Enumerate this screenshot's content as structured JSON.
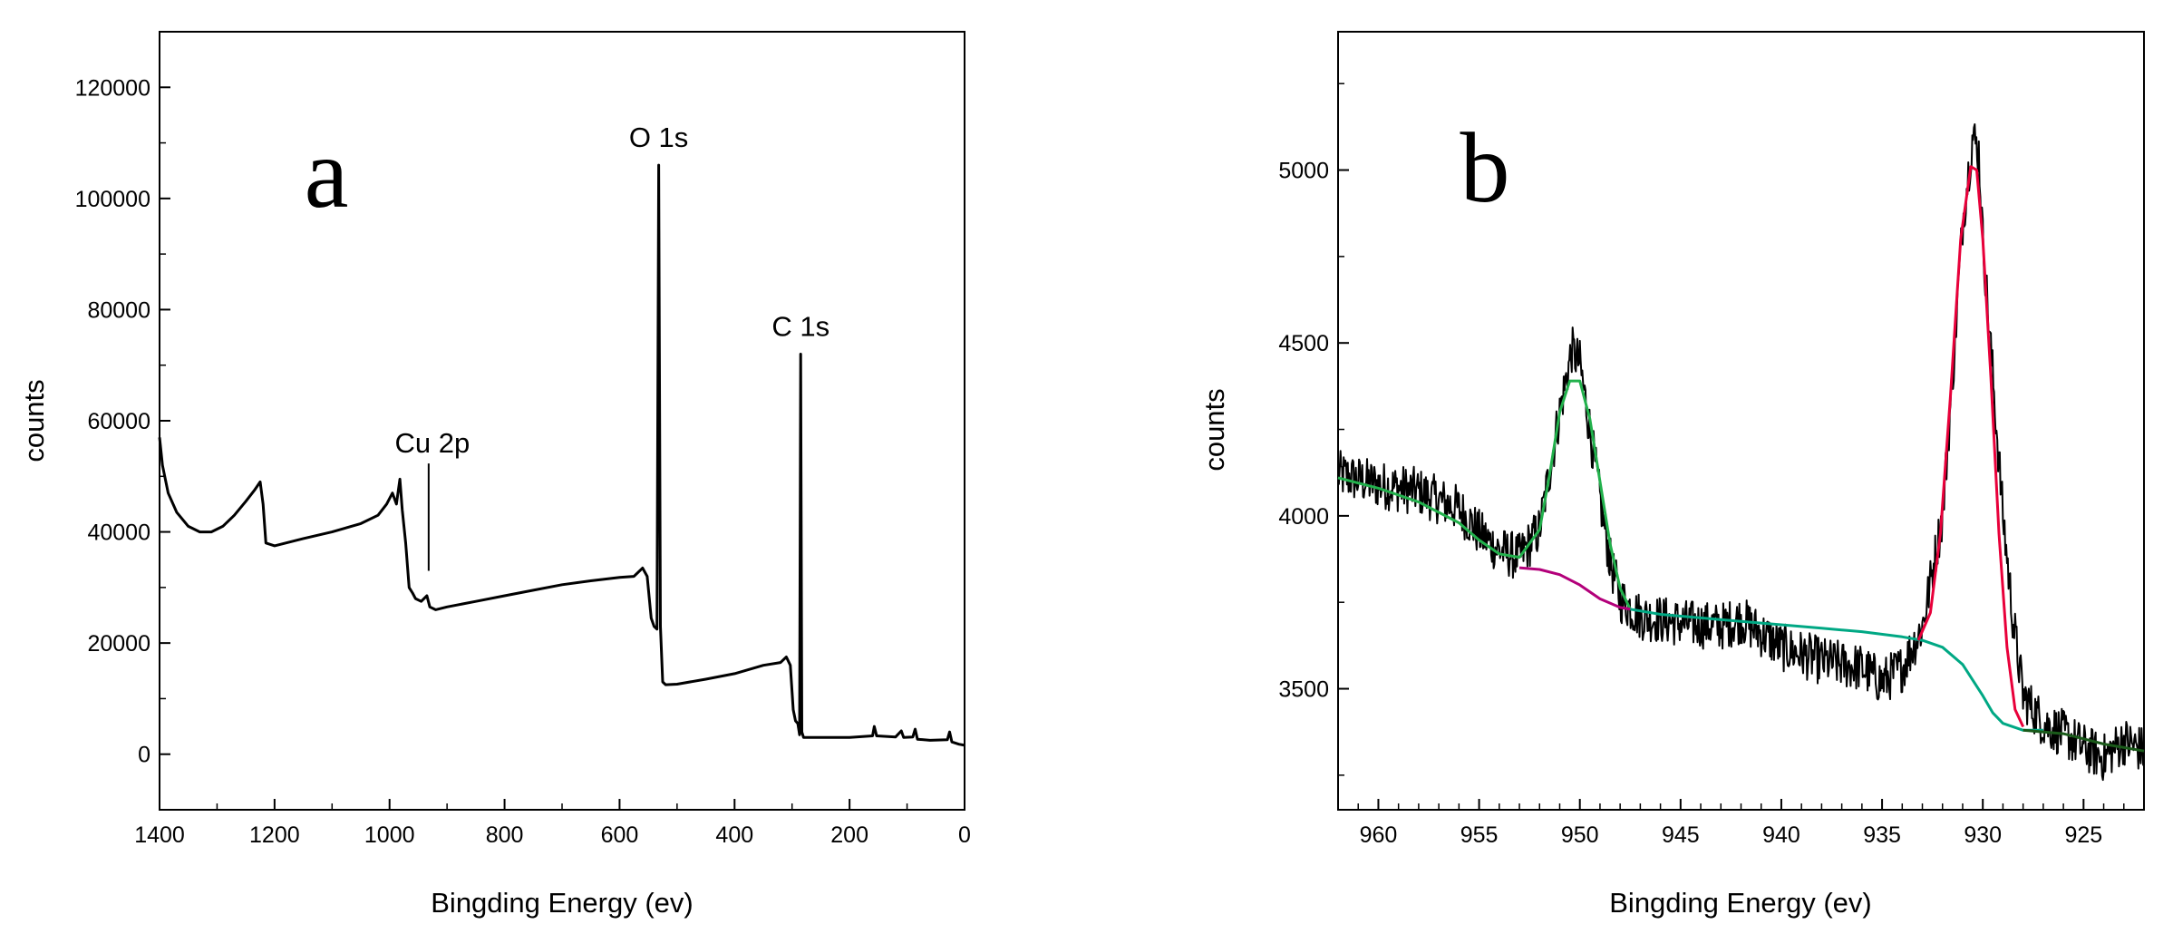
{
  "chart_data": [
    {
      "type": "line",
      "panel_label": "a",
      "xlabel": "Bingding Energy (ev)",
      "ylabel": "counts",
      "xlim": [
        1400,
        0
      ],
      "ylim": [
        -10000,
        130000
      ],
      "x_reversed": true,
      "xticks": [
        1400,
        1200,
        1000,
        800,
        600,
        400,
        200,
        0
      ],
      "yticks": [
        0,
        20000,
        40000,
        60000,
        80000,
        100000,
        120000
      ],
      "grid": false,
      "series": [
        {
          "color": "#000000",
          "points": [
            [
              1400,
              57000
            ],
            [
              1395,
              52000
            ],
            [
              1385,
              47000
            ],
            [
              1370,
              43500
            ],
            [
              1350,
              41000
            ],
            [
              1330,
              40000
            ],
            [
              1310,
              40000
            ],
            [
              1290,
              41000
            ],
            [
              1270,
              43000
            ],
            [
              1250,
              45500
            ],
            [
              1235,
              47500
            ],
            [
              1225,
              49000
            ],
            [
              1220,
              45000
            ],
            [
              1215,
              38000
            ],
            [
              1200,
              37500
            ],
            [
              1150,
              38800
            ],
            [
              1100,
              40000
            ],
            [
              1050,
              41500
            ],
            [
              1020,
              43000
            ],
            [
              1005,
              45000
            ],
            [
              995,
              47000
            ],
            [
              988,
              45000
            ],
            [
              982,
              49500
            ],
            [
              978,
              44000
            ],
            [
              972,
              38000
            ],
            [
              966,
              30000
            ],
            [
              960,
              29000
            ],
            [
              955,
              28000
            ],
            [
              945,
              27500
            ],
            [
              935,
              28500
            ],
            [
              930,
              26500
            ],
            [
              920,
              26000
            ],
            [
              900,
              26500
            ],
            [
              850,
              27500
            ],
            [
              800,
              28500
            ],
            [
              750,
              29500
            ],
            [
              700,
              30500
            ],
            [
              650,
              31200
            ],
            [
              600,
              31800
            ],
            [
              575,
              32000
            ],
            [
              560,
              33500
            ],
            [
              552,
              32000
            ],
            [
              545,
              24500
            ],
            [
              540,
              23000
            ],
            [
              535,
              22500
            ],
            [
              532,
              106000
            ],
            [
              529,
              23000
            ],
            [
              525,
              13000
            ],
            [
              520,
              12500
            ],
            [
              500,
              12600
            ],
            [
              450,
              13500
            ],
            [
              400,
              14500
            ],
            [
              350,
              16000
            ],
            [
              320,
              16500
            ],
            [
              310,
              17500
            ],
            [
              303,
              16000
            ],
            [
              298,
              8000
            ],
            [
              294,
              6000
            ],
            [
              290,
              5500
            ],
            [
              287,
              3500
            ],
            [
              285,
              72000
            ],
            [
              283,
              4000
            ],
            [
              280,
              3000
            ],
            [
              250,
              3000
            ],
            [
              200,
              3000
            ],
            [
              160,
              3300
            ],
            [
              157,
              5000
            ],
            [
              153,
              3300
            ],
            [
              120,
              3100
            ],
            [
              110,
              4200
            ],
            [
              106,
              3000
            ],
            [
              90,
              3100
            ],
            [
              86,
              4500
            ],
            [
              82,
              2700
            ],
            [
              60,
              2500
            ],
            [
              30,
              2600
            ],
            [
              26,
              4000
            ],
            [
              22,
              2200
            ],
            [
              10,
              1800
            ],
            [
              0,
              1600
            ]
          ]
        }
      ],
      "annotations": [
        {
          "text": "O 1s",
          "x": 532,
          "y": 106000
        },
        {
          "text": "C 1s",
          "x": 285,
          "y": 72000
        },
        {
          "text": "Cu 2p",
          "x": 932,
          "y": 51000,
          "line_to": 33000
        }
      ]
    },
    {
      "type": "line",
      "panel_label": "b",
      "xlabel": "Bingding Energy (ev)",
      "ylabel": "counts",
      "xlim": [
        962,
        922
      ],
      "ylim": [
        3150,
        5400
      ],
      "x_reversed": true,
      "xticks": [
        960,
        955,
        950,
        945,
        940,
        935,
        930,
        925
      ],
      "yticks": [
        3500,
        4000,
        4500,
        5000
      ],
      "grid": false,
      "series": [
        {
          "role": "raw",
          "color": "#000000",
          "noise": 70,
          "points": [
            [
              962,
              4120
            ],
            [
              960,
              4090
            ],
            [
              958,
              4070
            ],
            [
              956,
              4020
            ],
            [
              955,
              3950
            ],
            [
              954,
              3900
            ],
            [
              953,
              3880
            ],
            [
              952,
              3960
            ],
            [
              951,
              4300
            ],
            [
              950.4,
              4480
            ],
            [
              950,
              4440
            ],
            [
              949.5,
              4250
            ],
            [
              949,
              4050
            ],
            [
              948.5,
              3870
            ],
            [
              948,
              3760
            ],
            [
              947,
              3710
            ],
            [
              945,
              3690
            ],
            [
              943,
              3680
            ],
            [
              942,
              3700
            ],
            [
              940,
              3620
            ],
            [
              938,
              3580
            ],
            [
              936,
              3560
            ],
            [
              935,
              3520
            ],
            [
              934,
              3560
            ],
            [
              933,
              3680
            ],
            [
              932,
              4000
            ],
            [
              931.5,
              4400
            ],
            [
              931,
              4850
            ],
            [
              930.5,
              5100
            ],
            [
              930.2,
              5050
            ],
            [
              930,
              4800
            ],
            [
              929.5,
              4400
            ],
            [
              929,
              4000
            ],
            [
              928.5,
              3700
            ],
            [
              928,
              3480
            ],
            [
              927,
              3400
            ],
            [
              926,
              3370
            ],
            [
              925,
              3330
            ],
            [
              924,
              3300
            ],
            [
              923,
              3350
            ],
            [
              922,
              3320
            ]
          ]
        },
        {
          "role": "fit-envelope",
          "color": "#22b14c",
          "points": [
            [
              962,
              4110
            ],
            [
              960,
              4080
            ],
            [
              958,
              4040
            ],
            [
              956,
              3980
            ],
            [
              955,
              3930
            ],
            [
              954,
              3890
            ],
            [
              953,
              3880
            ],
            [
              952,
              3960
            ],
            [
              951.5,
              4120
            ],
            [
              951,
              4300
            ],
            [
              950.5,
              4390
            ],
            [
              950,
              4390
            ],
            [
              949.5,
              4280
            ],
            [
              949,
              4100
            ],
            [
              948.5,
              3920
            ],
            [
              948,
              3790
            ],
            [
              947.5,
              3730
            ]
          ]
        },
        {
          "role": "background",
          "color": "#00a884",
          "points": [
            [
              947.5,
              3730
            ],
            [
              946,
              3715
            ],
            [
              944,
              3705
            ],
            [
              942,
              3695
            ],
            [
              940,
              3685
            ],
            [
              938,
              3675
            ],
            [
              936,
              3665
            ],
            [
              934,
              3650
            ],
            [
              933,
              3640
            ],
            [
              932,
              3620
            ],
            [
              931,
              3570
            ],
            [
              930,
              3480
            ],
            [
              929.5,
              3430
            ],
            [
              929,
              3400
            ],
            [
              928,
              3380
            ],
            [
              927,
              3380
            ]
          ]
        },
        {
          "role": "background-cu2p1/2",
          "color": "#b3007a",
          "points": [
            [
              953,
              3850
            ],
            [
              952,
              3845
            ],
            [
              951,
              3830
            ],
            [
              950,
              3800
            ],
            [
              949,
              3760
            ],
            [
              948,
              3735
            ],
            [
              947.5,
              3730
            ]
          ]
        },
        {
          "role": "peak-fit",
          "color": "#e8003a",
          "points": [
            [
              933.2,
              3640
            ],
            [
              932.6,
              3720
            ],
            [
              932.1,
              3950
            ],
            [
              931.6,
              4350
            ],
            [
              931.1,
              4800
            ],
            [
              930.6,
              5010
            ],
            [
              930.3,
              5000
            ],
            [
              930,
              4800
            ],
            [
              929.6,
              4400
            ],
            [
              929.2,
              3950
            ],
            [
              928.8,
              3620
            ],
            [
              928.4,
              3440
            ],
            [
              928,
              3390
            ]
          ]
        },
        {
          "role": "tail-fit",
          "color": "#1a5a1a",
          "points": [
            [
              928,
              3380
            ],
            [
              926,
              3370
            ],
            [
              924,
              3340
            ],
            [
              922,
              3320
            ]
          ]
        }
      ]
    }
  ]
}
